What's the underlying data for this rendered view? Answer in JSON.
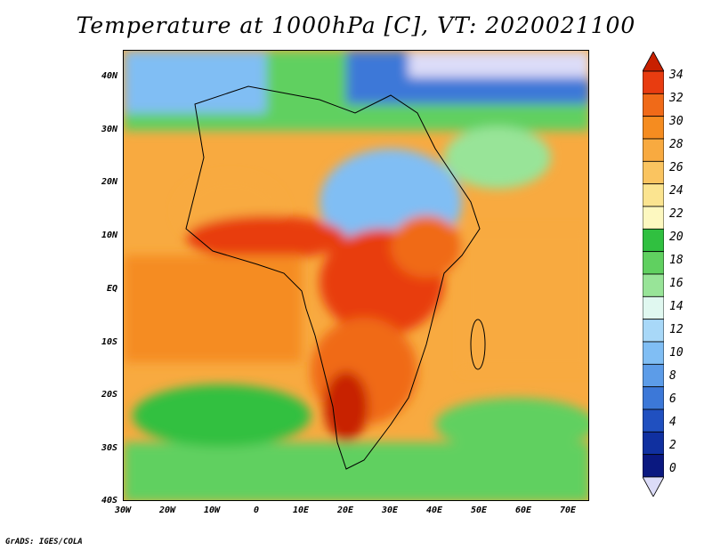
{
  "title": "Temperature at 1000hPa [C], VT: 2020021100",
  "credit": "GrADS: IGES/COLA",
  "lat_labels": [
    "40N",
    "30N",
    "20N",
    "10N",
    "EQ",
    "10S",
    "20S",
    "30S",
    "40S"
  ],
  "lon_labels": [
    "30W",
    "20W",
    "10W",
    "0",
    "10E",
    "20E",
    "30E",
    "40E",
    "50E",
    "60E",
    "70E"
  ],
  "colorbar": {
    "labels": [
      "34",
      "32",
      "30",
      "28",
      "26",
      "24",
      "22",
      "20",
      "18",
      "16",
      "14",
      "12",
      "10",
      "8",
      "6",
      "4",
      "2",
      "0"
    ],
    "colors": [
      "#c82000",
      "#e83c10",
      "#f06a18",
      "#f58c20",
      "#f8aa40",
      "#fac460",
      "#fbe490",
      "#fdf8c0",
      "#30c040",
      "#60d060",
      "#98e498",
      "#e0f8f0",
      "#a8d8f8",
      "#80bef4",
      "#5c9ce8",
      "#3c78d8",
      "#2050c0",
      "#1030a0",
      "#0a1880",
      "#dcdcf8"
    ]
  },
  "map": {
    "domain": {
      "lon": [
        -30,
        75
      ],
      "lat": [
        -40,
        45
      ]
    },
    "variable": "Temperature",
    "units": "C",
    "level": "1000hPa",
    "valid_time": "2020021100"
  }
}
